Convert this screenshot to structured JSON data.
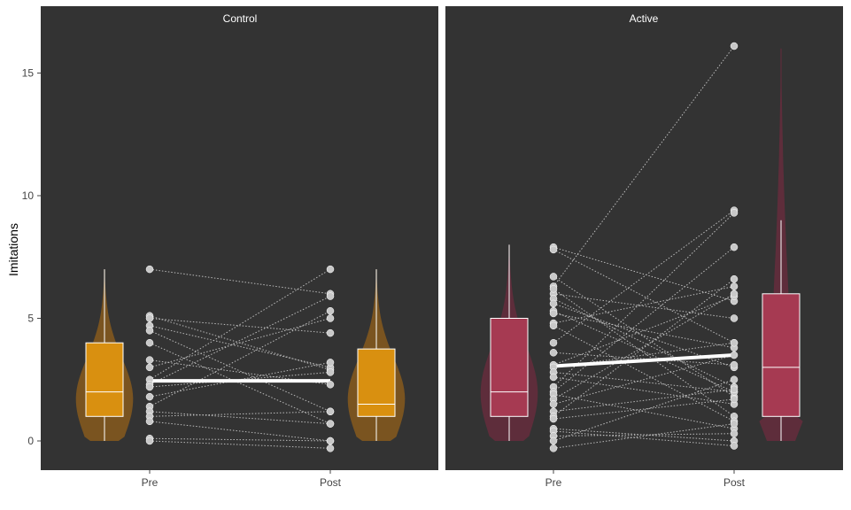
{
  "chart_data": {
    "type": "violin-box-scatter",
    "ylabel": "Imitations",
    "y_ticks": [
      0,
      5,
      10,
      15
    ],
    "ylim": [
      -1.2,
      17.2
    ],
    "categories": [
      "Pre",
      "Post"
    ],
    "grid": false,
    "panels": [
      {
        "name": "Control",
        "color": "#d99010",
        "violin_color": "#7a5420",
        "pre_box": {
          "min": 0,
          "q1": 1,
          "median": 2,
          "q3": 4,
          "max": 7
        },
        "post_box": {
          "min": 0,
          "q1": 1,
          "median": 1.5,
          "q3": 3.75,
          "max": 7
        },
        "violin_max": 7,
        "mean_line": {
          "pre": 2.45,
          "post": 2.45
        },
        "pairs": [
          [
            7,
            6
          ],
          [
            5.1,
            2.9
          ],
          [
            5.0,
            4.4
          ],
          [
            4.7,
            3.0
          ],
          [
            4.5,
            1.2
          ],
          [
            4.0,
            0.7
          ],
          [
            3.3,
            2.3
          ],
          [
            3.0,
            5.0
          ],
          [
            2.5,
            7.0
          ],
          [
            2.3,
            5.9
          ],
          [
            2.2,
            2.8
          ],
          [
            1.8,
            3.2
          ],
          [
            1.4,
            5.3
          ],
          [
            1.2,
            0.7
          ],
          [
            1.0,
            1.2
          ],
          [
            0.8,
            0.0
          ],
          [
            0.1,
            0.0
          ],
          [
            0.0,
            -0.3
          ]
        ]
      },
      {
        "name": "Active",
        "color": "#a63a52",
        "violin_color": "#5e2d3b",
        "pre_box": {
          "min": 0,
          "q1": 1,
          "median": 2,
          "q3": 5,
          "max": 8
        },
        "post_box": {
          "min": 0,
          "q1": 1,
          "median": 3,
          "q3": 6,
          "max": 9
        },
        "violin_max": 16,
        "mean_line": {
          "pre": 3.05,
          "post": 3.5
        },
        "pairs": [
          [
            7.9,
            5.7
          ],
          [
            7.8,
            4.0
          ],
          [
            6.7,
            1.8
          ],
          [
            6.3,
            16.1
          ],
          [
            6.0,
            5.0
          ],
          [
            6.2,
            1.0
          ],
          [
            5.8,
            2.2
          ],
          [
            5.6,
            3.0
          ],
          [
            5.3,
            2.0
          ],
          [
            5.2,
            3.8
          ],
          [
            4.8,
            6.3
          ],
          [
            4.7,
            0.8
          ],
          [
            4.0,
            9.4
          ],
          [
            3.6,
            3.1
          ],
          [
            3.1,
            5.9
          ],
          [
            3.0,
            4.0
          ],
          [
            2.8,
            2.0
          ],
          [
            2.6,
            1.5
          ],
          [
            2.2,
            9.3
          ],
          [
            2.0,
            7.9
          ],
          [
            1.9,
            0.5
          ],
          [
            1.7,
            6.0
          ],
          [
            1.5,
            3.5
          ],
          [
            1.2,
            2.1
          ],
          [
            1.0,
            6.6
          ],
          [
            0.9,
            1.7
          ],
          [
            0.5,
            0.0
          ],
          [
            0.4,
            -0.2
          ],
          [
            0.2,
            0.3
          ],
          [
            0.0,
            2.5
          ],
          [
            -0.3,
            0.7
          ]
        ]
      }
    ]
  }
}
